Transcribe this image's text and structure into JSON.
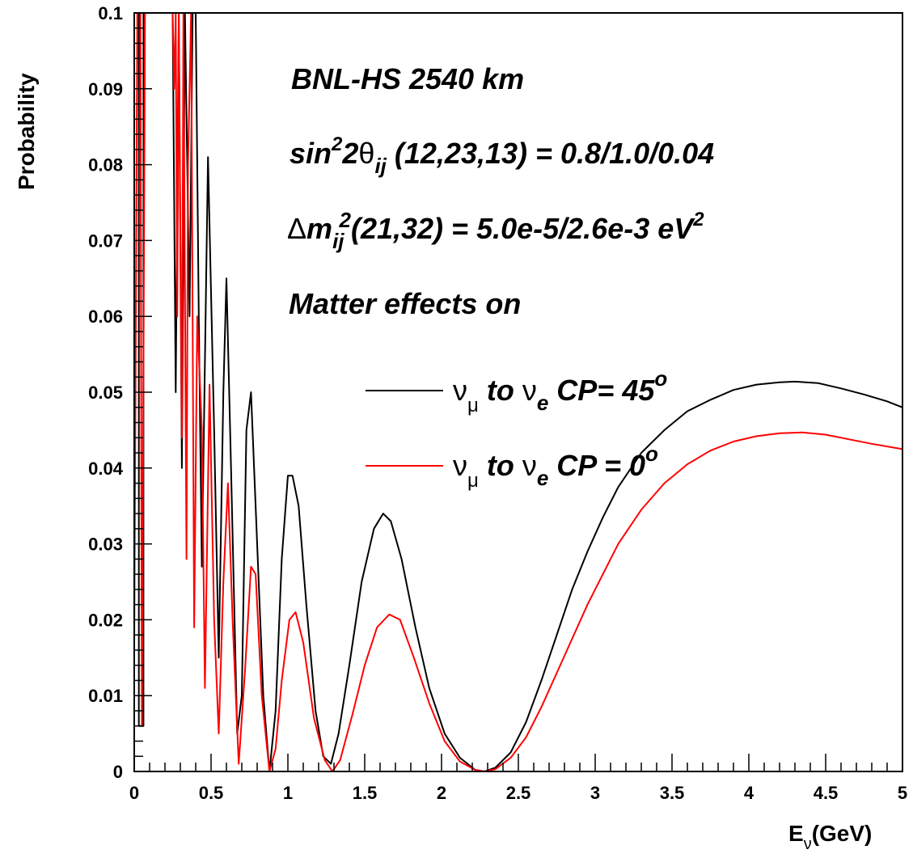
{
  "chart_data": {
    "type": "line",
    "xlabel": "E",
    "xlabel_sub": "ν",
    "xlabel_unit": "(GeV)",
    "ylabel": "Probability",
    "xlim": [
      0,
      5
    ],
    "ylim": [
      0,
      0.1
    ],
    "x_ticks": [
      "0",
      "0.5",
      "1",
      "1.5",
      "2",
      "2.5",
      "3",
      "3.5",
      "4",
      "4.5",
      "5"
    ],
    "y_ticks": [
      "0",
      "0.01",
      "0.02",
      "0.03",
      "0.04",
      "0.05",
      "0.06",
      "0.07",
      "0.08",
      "0.09",
      "0.1"
    ],
    "annotations": {
      "line1": "BNL-HS  2540 km",
      "line2": {
        "a": "sin",
        "sup1": "2",
        "b": "2",
        "theta": "θ",
        "sub": "ij",
        "c": " (12,23,13) = 0.8/1.0/0.04"
      },
      "line3": {
        "delta": "Δ",
        "a": "m",
        "sub": "ij",
        "sup": "2",
        "b": "(21,32) = 5.0e-5/2.6e-3 eV",
        "sup2": "2"
      },
      "line4": "Matter effects on"
    },
    "legend": [
      {
        "nu": "ν",
        "mu": "μ",
        "to": " to ",
        "nu2": "ν",
        "e": "e",
        "cp": " CP= 45",
        "deg": "o",
        "color": "#000000"
      },
      {
        "nu": "ν",
        "mu": "μ",
        "to": " to ",
        "nu2": "ν",
        "e": "e",
        "cp": " CP = 0",
        "deg": "o",
        "color": "#ff0000"
      }
    ],
    "series": [
      {
        "color": "#000000",
        "points": [
          [
            0.03,
            0.1
          ],
          [
            0.03,
            0.006
          ],
          [
            0.06,
            0.006
          ],
          [
            0.06,
            0.1
          ],
          [
            0.25,
            0.1
          ],
          [
            0.27,
            0.05
          ],
          [
            0.29,
            0.1
          ],
          [
            0.31,
            0.04
          ],
          [
            0.33,
            0.1
          ],
          [
            0.36,
            0.06
          ],
          [
            0.38,
            0.1
          ],
          [
            0.4,
            0.1
          ],
          [
            0.42,
            0.06
          ],
          [
            0.44,
            0.027
          ],
          [
            0.48,
            0.081
          ],
          [
            0.52,
            0.045
          ],
          [
            0.55,
            0.015
          ],
          [
            0.58,
            0.05
          ],
          [
            0.6,
            0.065
          ],
          [
            0.63,
            0.04
          ],
          [
            0.67,
            0.005
          ],
          [
            0.7,
            0.01
          ],
          [
            0.73,
            0.045
          ],
          [
            0.76,
            0.05
          ],
          [
            0.79,
            0.035
          ],
          [
            0.84,
            0.01
          ],
          [
            0.88,
            0.0
          ],
          [
            0.92,
            0.008
          ],
          [
            0.96,
            0.028
          ],
          [
            1.0,
            0.039
          ],
          [
            1.03,
            0.039
          ],
          [
            1.07,
            0.035
          ],
          [
            1.12,
            0.022
          ],
          [
            1.18,
            0.008
          ],
          [
            1.23,
            0.002
          ],
          [
            1.28,
            0.001
          ],
          [
            1.33,
            0.005
          ],
          [
            1.4,
            0.014
          ],
          [
            1.48,
            0.025
          ],
          [
            1.56,
            0.032
          ],
          [
            1.62,
            0.034
          ],
          [
            1.67,
            0.033
          ],
          [
            1.74,
            0.028
          ],
          [
            1.83,
            0.019
          ],
          [
            1.92,
            0.011
          ],
          [
            2.02,
            0.005
          ],
          [
            2.12,
            0.0018
          ],
          [
            2.22,
            0.0002
          ],
          [
            2.28,
            0.0
          ],
          [
            2.35,
            0.0005
          ],
          [
            2.45,
            0.0025
          ],
          [
            2.55,
            0.0065
          ],
          [
            2.65,
            0.012
          ],
          [
            2.75,
            0.018
          ],
          [
            2.85,
            0.024
          ],
          [
            2.95,
            0.029
          ],
          [
            3.05,
            0.0335
          ],
          [
            3.15,
            0.0375
          ],
          [
            3.3,
            0.042
          ],
          [
            3.45,
            0.045
          ],
          [
            3.6,
            0.0475
          ],
          [
            3.75,
            0.049
          ],
          [
            3.9,
            0.0503
          ],
          [
            4.05,
            0.051
          ],
          [
            4.2,
            0.0513
          ],
          [
            4.3,
            0.0514
          ],
          [
            4.45,
            0.0512
          ],
          [
            4.6,
            0.0505
          ],
          [
            4.75,
            0.0497
          ],
          [
            4.9,
            0.0488
          ],
          [
            5.0,
            0.048
          ]
        ]
      },
      {
        "color": "#ff0000",
        "points": [
          [
            0.0,
            0.1
          ],
          [
            0.0,
            0.016
          ],
          [
            0.02,
            0.1
          ],
          [
            0.04,
            0.1
          ],
          [
            0.05,
            0.006
          ],
          [
            0.07,
            0.1
          ],
          [
            0.25,
            0.1
          ],
          [
            0.26,
            0.09
          ],
          [
            0.27,
            0.1
          ],
          [
            0.28,
            0.06
          ],
          [
            0.29,
            0.1
          ],
          [
            0.31,
            0.044
          ],
          [
            0.32,
            0.1
          ],
          [
            0.34,
            0.028
          ],
          [
            0.35,
            0.08
          ],
          [
            0.37,
            0.1
          ],
          [
            0.39,
            0.019
          ],
          [
            0.41,
            0.06
          ],
          [
            0.44,
            0.045
          ],
          [
            0.46,
            0.011
          ],
          [
            0.49,
            0.051
          ],
          [
            0.52,
            0.02
          ],
          [
            0.55,
            0.005
          ],
          [
            0.58,
            0.025
          ],
          [
            0.61,
            0.038
          ],
          [
            0.64,
            0.02
          ],
          [
            0.68,
            0.001
          ],
          [
            0.72,
            0.013
          ],
          [
            0.76,
            0.027
          ],
          [
            0.79,
            0.026
          ],
          [
            0.83,
            0.01
          ],
          [
            0.88,
            0.0
          ],
          [
            0.92,
            0.003
          ],
          [
            0.96,
            0.012
          ],
          [
            1.01,
            0.02
          ],
          [
            1.05,
            0.021
          ],
          [
            1.1,
            0.017
          ],
          [
            1.17,
            0.007
          ],
          [
            1.24,
            0.0015
          ],
          [
            1.29,
            0.0
          ],
          [
            1.34,
            0.0015
          ],
          [
            1.42,
            0.0075
          ],
          [
            1.5,
            0.014
          ],
          [
            1.58,
            0.019
          ],
          [
            1.66,
            0.0207
          ],
          [
            1.73,
            0.02
          ],
          [
            1.82,
            0.015
          ],
          [
            1.92,
            0.009
          ],
          [
            2.02,
            0.004
          ],
          [
            2.12,
            0.0013
          ],
          [
            2.22,
            0.0002
          ],
          [
            2.28,
            0.0
          ],
          [
            2.35,
            0.0003
          ],
          [
            2.45,
            0.0018
          ],
          [
            2.55,
            0.0045
          ],
          [
            2.65,
            0.0085
          ],
          [
            2.75,
            0.013
          ],
          [
            2.85,
            0.0175
          ],
          [
            2.95,
            0.022
          ],
          [
            3.05,
            0.026
          ],
          [
            3.15,
            0.03
          ],
          [
            3.3,
            0.0345
          ],
          [
            3.45,
            0.038
          ],
          [
            3.6,
            0.0405
          ],
          [
            3.75,
            0.0423
          ],
          [
            3.9,
            0.0435
          ],
          [
            4.05,
            0.0442
          ],
          [
            4.2,
            0.0446
          ],
          [
            4.35,
            0.0447
          ],
          [
            4.5,
            0.0444
          ],
          [
            4.65,
            0.0438
          ],
          [
            4.8,
            0.0432
          ],
          [
            5.0,
            0.0425
          ]
        ]
      }
    ]
  }
}
